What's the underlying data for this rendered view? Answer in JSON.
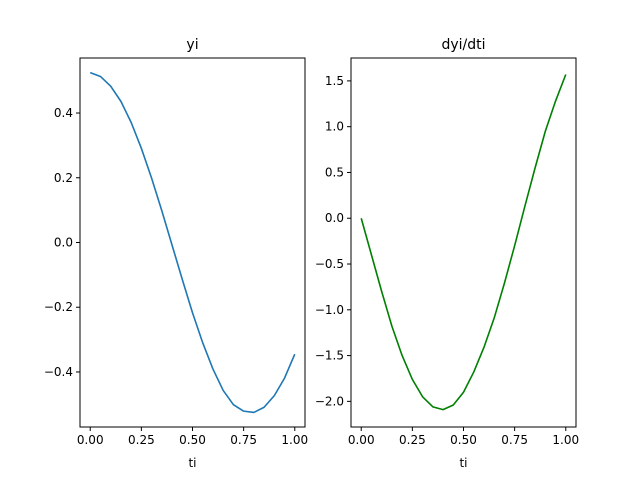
{
  "chart_data": [
    {
      "type": "line",
      "title": "yi",
      "xlabel": "ti",
      "ylabel": "",
      "color": "#1f77b4",
      "grid": false,
      "xlim": [
        -0.05,
        1.05
      ],
      "ylim": [
        -0.57,
        0.57
      ],
      "xticks": [
        0.0,
        0.25,
        0.5,
        0.75,
        1.0
      ],
      "xticklabels": [
        "0.00",
        "0.25",
        "0.50",
        "0.75",
        "1.00"
      ],
      "yticks": [
        -0.4,
        -0.2,
        0.0,
        0.2,
        0.4
      ],
      "yticklabels": [
        "−0.4",
        "−0.2",
        "0.0",
        "0.2",
        "0.4"
      ],
      "x": [
        0.0,
        0.05,
        0.1,
        0.15,
        0.2,
        0.25,
        0.3,
        0.35,
        0.4,
        0.45,
        0.5,
        0.55,
        0.6,
        0.65,
        0.7,
        0.75,
        0.8,
        0.85,
        0.9,
        0.95,
        1.0
      ],
      "y": [
        0.525,
        0.513,
        0.483,
        0.436,
        0.371,
        0.291,
        0.199,
        0.098,
        -0.008,
        -0.114,
        -0.217,
        -0.31,
        -0.391,
        -0.457,
        -0.501,
        -0.521,
        -0.525,
        -0.509,
        -0.473,
        -0.419,
        -0.345
      ]
    },
    {
      "type": "line",
      "title": "dyi/dti",
      "xlabel": "ti",
      "ylabel": "",
      "color": "#008000",
      "grid": false,
      "xlim": [
        -0.05,
        1.05
      ],
      "ylim": [
        -2.28,
        1.75
      ],
      "xticks": [
        0.0,
        0.25,
        0.5,
        0.75,
        1.0
      ],
      "xticklabels": [
        "0.00",
        "0.25",
        "0.50",
        "0.75",
        "1.00"
      ],
      "yticks": [
        -2.0,
        -1.5,
        -1.0,
        -0.5,
        0.0,
        0.5,
        1.0,
        1.5
      ],
      "yticklabels": [
        "−2.0",
        "−1.5",
        "−1.0",
        "−0.5",
        "0.0",
        "0.5",
        "1.0",
        "1.5"
      ],
      "x": [
        0.0,
        0.05,
        0.1,
        0.15,
        0.2,
        0.25,
        0.3,
        0.35,
        0.4,
        0.45,
        0.5,
        0.55,
        0.6,
        0.65,
        0.7,
        0.75,
        0.8,
        0.85,
        0.9,
        0.95,
        1.0
      ],
      "y": [
        0.0,
        -0.4,
        -0.8,
        -1.18,
        -1.5,
        -1.76,
        -1.95,
        -2.06,
        -2.09,
        -2.04,
        -1.9,
        -1.68,
        -1.41,
        -1.09,
        -0.71,
        -0.3,
        0.13,
        0.55,
        0.95,
        1.28,
        1.57
      ]
    }
  ]
}
